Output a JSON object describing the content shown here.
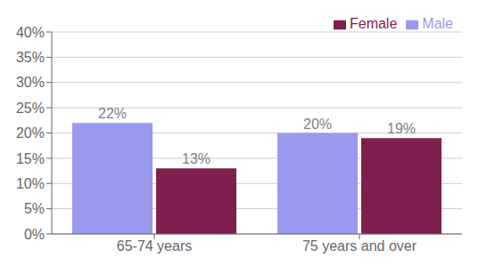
{
  "chart_data": {
    "type": "bar",
    "categories": [
      "65-74 years",
      "75 years and over"
    ],
    "series": [
      {
        "name": "Male",
        "color": "#9999ee",
        "values": [
          22,
          20
        ],
        "value_labels": [
          "22%",
          "20%"
        ]
      },
      {
        "name": "Female",
        "color": "#7f1f4f",
        "values": [
          13,
          19
        ],
        "value_labels": [
          "13%",
          "19%"
        ]
      }
    ],
    "ylim": [
      0,
      40
    ],
    "yticks": [
      {
        "value": 0,
        "label": "0%"
      },
      {
        "value": 5,
        "label": "5%"
      },
      {
        "value": 10,
        "label": "10%"
      },
      {
        "value": 15,
        "label": "15%"
      },
      {
        "value": 20,
        "label": "20%"
      },
      {
        "value": 25,
        "label": "25%"
      },
      {
        "value": 30,
        "label": "30%"
      },
      {
        "value": 35,
        "label": "35%"
      },
      {
        "value": 40,
        "label": "40%"
      }
    ],
    "grid": true,
    "legend": "upper right",
    "data_labels": true
  }
}
